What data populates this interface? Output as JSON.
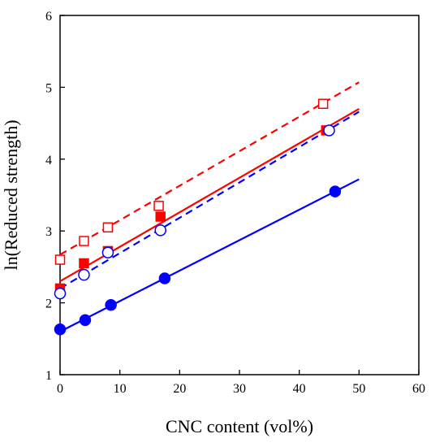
{
  "chart_data": {
    "type": "scatter",
    "title": "",
    "xlabel": "CNC content (vol%)",
    "ylabel": "ln(Reduced strength)",
    "xlim": [
      0,
      60
    ],
    "ylim": [
      1,
      6
    ],
    "xticks": [
      0,
      10,
      20,
      30,
      40,
      50,
      60
    ],
    "yticks": [
      1,
      2,
      3,
      4,
      5,
      6
    ],
    "grid": false,
    "legend": "none",
    "series": [
      {
        "color": "#ff0000",
        "marker": "square",
        "filled": false,
        "points": [
          [
            0,
            2.6
          ],
          [
            4,
            2.86
          ],
          [
            8,
            3.05
          ],
          [
            16.5,
            3.35
          ],
          [
            44,
            4.77
          ]
        ],
        "fit": {
          "x": [
            0,
            50
          ],
          "y": [
            2.67,
            5.07
          ],
          "line": "dashed"
        }
      },
      {
        "color": "#ff0000",
        "marker": "square",
        "filled": true,
        "points": [
          [
            0,
            2.2
          ],
          [
            4,
            2.55
          ],
          [
            8,
            2.72
          ],
          [
            16.8,
            3.2
          ],
          [
            44.5,
            4.4
          ]
        ],
        "fit": {
          "x": [
            0,
            50
          ],
          "y": [
            2.3,
            4.7
          ],
          "line": "solid"
        }
      },
      {
        "color": "#0000ff",
        "marker": "circle",
        "filled": false,
        "points": [
          [
            0,
            2.13
          ],
          [
            4,
            2.39
          ],
          [
            8,
            2.7
          ],
          [
            16.8,
            3.01
          ],
          [
            45,
            4.4
          ]
        ],
        "fit": {
          "x": [
            0,
            50
          ],
          "y": [
            2.2,
            4.66
          ],
          "line": "dashed"
        }
      },
      {
        "color": "#0000ff",
        "marker": "circle",
        "filled": true,
        "points": [
          [
            0,
            1.63
          ],
          [
            4.2,
            1.76
          ],
          [
            8.5,
            1.97
          ],
          [
            17.5,
            2.34
          ],
          [
            46,
            3.55
          ]
        ],
        "fit": {
          "x": [
            0,
            50
          ],
          "y": [
            1.6,
            3.72
          ],
          "line": "solid"
        }
      }
    ]
  }
}
